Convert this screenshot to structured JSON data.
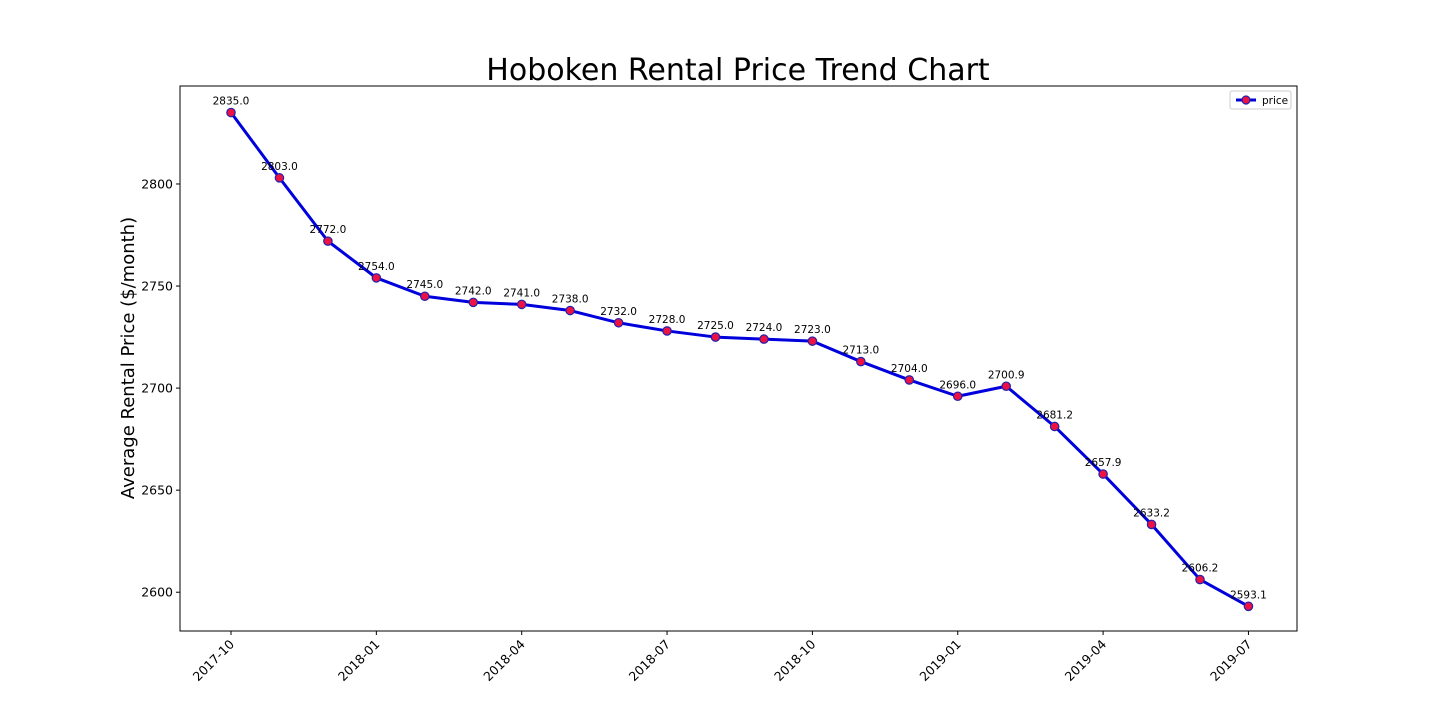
{
  "chart_data": {
    "type": "line",
    "title": "Hoboken Rental Price Trend Chart",
    "xlabel": "",
    "ylabel": "Average Rental Price ($/month)",
    "x": [
      "2017-10",
      "2017-11",
      "2017-12",
      "2018-01",
      "2018-02",
      "2018-03",
      "2018-04",
      "2018-05",
      "2018-06",
      "2018-07",
      "2018-08",
      "2018-09",
      "2018-10",
      "2018-11",
      "2018-12",
      "2019-01",
      "2019-02",
      "2019-03",
      "2019-04",
      "2019-05",
      "2019-06",
      "2019-07"
    ],
    "x_ticks": [
      "2017-10",
      "2018-01",
      "2018-04",
      "2018-07",
      "2018-10",
      "2019-01",
      "2019-04",
      "2019-07"
    ],
    "y_ticks": [
      2600,
      2650,
      2700,
      2750,
      2800
    ],
    "ylim": [
      2581,
      2848
    ],
    "series": [
      {
        "name": "price",
        "values": [
          2835.0,
          2803.0,
          2772.0,
          2754.0,
          2745.0,
          2742.0,
          2741.0,
          2738.0,
          2732.0,
          2728.0,
          2725.0,
          2724.0,
          2723.0,
          2713.0,
          2704.0,
          2696.0,
          2700.9,
          2681.2,
          2657.9,
          2633.2,
          2606.2,
          2593.1
        ],
        "labels": [
          "2835.0",
          "2803.0",
          "2772.0",
          "2754.0",
          "2745.0",
          "2742.0",
          "2741.0",
          "2738.0",
          "2732.0",
          "2728.0",
          "2725.0",
          "2724.0",
          "2723.0",
          "2713.0",
          "2704.0",
          "2696.0",
          "2700.9",
          "2681.2",
          "2657.9",
          "2633.2",
          "2606.2",
          "2593.1"
        ],
        "line_color": "#0000dd",
        "marker_color": "#ee1144"
      }
    ],
    "grid": false,
    "legend_position": "top-right"
  }
}
